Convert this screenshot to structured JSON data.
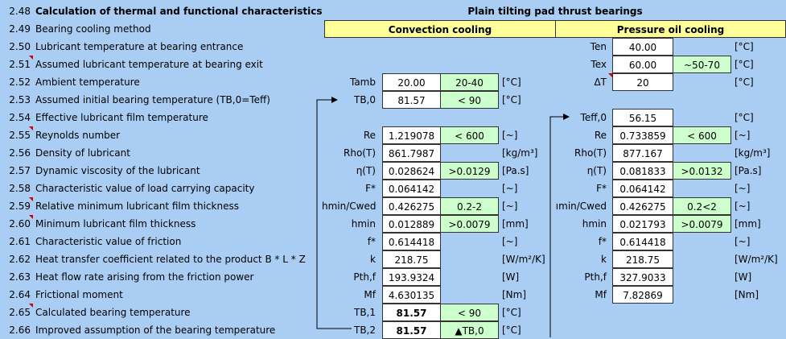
{
  "header": {
    "num": "2.48",
    "title": "Calculation of thermal and functional characteristics",
    "right_title": "Plain tilting pad thrust bearings"
  },
  "cooling": {
    "num": "2.49",
    "desc": "Bearing cooling method",
    "convection": "Convection cooling",
    "pressure": "Pressure oil cooling"
  },
  "rows": [
    {
      "num": "2.50",
      "desc": "Lubricant temperature at bearing entrance",
      "r_label": "Ten",
      "r_value": "40.00",
      "r_range": "",
      "r_unit": "[°C]"
    },
    {
      "num": "2.51",
      "desc": "Assumed lubricant temperature at bearing exit",
      "r_label": "Tex",
      "r_value": "60.00",
      "r_range": "~50-70",
      "r_unit": "[°C]"
    },
    {
      "num": "2.52",
      "desc": "Ambient temperature",
      "l_label": "Tamb",
      "l_value": "20.00",
      "l_range": "20-40",
      "l_unit": "[°C]",
      "r_label": "ΔT",
      "r_value": "20",
      "r_range": "",
      "r_unit": "[°C]"
    },
    {
      "num": "2.53",
      "desc": "Assumed initial bearing temperature (TB,0=Teff)",
      "l_label": "TB,0",
      "l_value": "81.57",
      "l_range": "< 90",
      "l_unit": "[°C]"
    },
    {
      "num": "2.54",
      "desc": "Effective lubricant film temperature",
      "r_label": "Teff,0",
      "r_value": "56.15",
      "r_range": "",
      "r_unit": "[°C]"
    },
    {
      "num": "2.55",
      "desc": "Reynolds number",
      "l_label": "Re",
      "l_value": "1.219078",
      "l_range": "< 600",
      "l_unit": "[~]",
      "r_label": "Re",
      "r_value": "0.733859",
      "r_range": "< 600",
      "r_unit": "[~]"
    },
    {
      "num": "2.56",
      "desc": "Density of lubricant",
      "l_label": "Rho(T)",
      "l_value": "861.7987",
      "l_range": "",
      "l_unit": "[kg/m³]",
      "r_label": "Rho(T)",
      "r_value": "877.167",
      "r_range": "",
      "r_unit": "[kg/m³]"
    },
    {
      "num": "2.57",
      "desc": "Dynamic viscosity of the lubricant",
      "l_label": "η(T)",
      "l_value": "0.028624",
      "l_range": ">0.0129",
      "l_unit": "[Pa.s]",
      "r_label": "η(T)",
      "r_value": "0.081833",
      "r_range": ">0.0132",
      "r_unit": "[Pa.s]"
    },
    {
      "num": "2.58",
      "desc": "Characteristic value of load carrying capacity",
      "l_label": "F*",
      "l_value": "0.064142",
      "l_range": "",
      "l_unit": "[~]",
      "r_label": "F*",
      "r_value": "0.064142",
      "r_range": "",
      "r_unit": "[~]"
    },
    {
      "num": "2.59",
      "desc": "Relative minimum lubricant film thickness",
      "l_label": "hmin/Cwed",
      "l_value": "0.426275",
      "l_range": "0.2-2",
      "l_unit": "[~]",
      "r_label": "ımin/Cwed",
      "r_value": "0.426275",
      "r_range": "0.2<2",
      "r_unit": "[~]"
    },
    {
      "num": "2.60",
      "desc": "Minimum lubricant film thickness",
      "l_label": "hmin",
      "l_value": "0.012889",
      "l_range": ">0.0079",
      "l_unit": "[mm]",
      "r_label": "hmin",
      "r_value": "0.021793",
      "r_range": ">0.0079",
      "r_unit": "[mm]"
    },
    {
      "num": "2.61",
      "desc": "Characteristic value of friction",
      "l_label": "f*",
      "l_value": "0.614418",
      "l_range": "",
      "l_unit": "[~]",
      "r_label": "f*",
      "r_value": "0.614418",
      "r_range": "",
      "r_unit": "[~]"
    },
    {
      "num": "2.62",
      "desc": "Heat transfer coefficient related to the product B * L * Z",
      "l_label": "k",
      "l_value": "218.75",
      "l_range": "",
      "l_unit": "[W/m²/K]",
      "r_label": "k",
      "r_value": "218.75",
      "r_range": "",
      "r_unit": "[W/m²/K]"
    },
    {
      "num": "2.63",
      "desc": "Heat flow rate arising from the friction power",
      "l_label": "Pth,f",
      "l_value": "193.9324",
      "l_range": "",
      "l_unit": "[W]",
      "r_label": "Pth,f",
      "r_value": "327.9033",
      "r_range": "",
      "r_unit": "[W]"
    },
    {
      "num": "2.64",
      "desc": "Frictional moment",
      "l_label": "Mf",
      "l_value": "4.630135",
      "l_range": "",
      "l_unit": "[Nm]",
      "r_label": "Mf",
      "r_value": "7.82869",
      "r_range": "",
      "r_unit": "[Nm]"
    },
    {
      "num": "2.65",
      "desc": "Calculated bearing temperature",
      "l_label": "TB,1",
      "l_value": "81.57",
      "l_range": "< 90",
      "l_unit": "[°C]"
    },
    {
      "num": "2.66",
      "desc": "Improved assumption of the bearing temperature",
      "l_label": "TB,2",
      "l_value": "81.57",
      "l_range": "▲TB,0",
      "l_unit": "[°C]"
    }
  ],
  "colors": {
    "background": "#a9cdf3",
    "input": "#ffffff",
    "range": "#ccffcc",
    "header": "#ffff99",
    "marker": "#d00000"
  }
}
